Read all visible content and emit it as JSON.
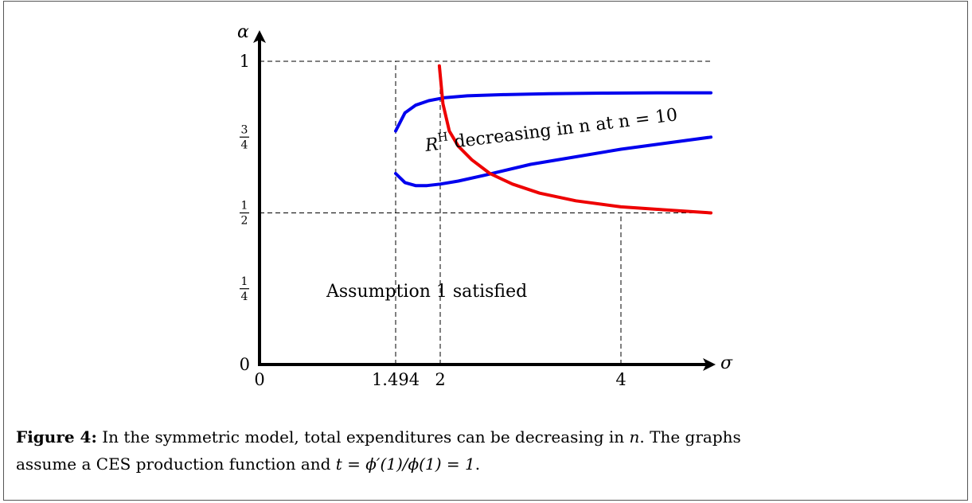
{
  "chart_data": {
    "type": "line",
    "xlabel": "σ",
    "ylabel": "α",
    "xlim": [
      0,
      5
    ],
    "ylim": [
      0,
      1
    ],
    "x_ticks": [
      {
        "value": 0,
        "label": "0"
      },
      {
        "value": 1.494,
        "label": "1.494"
      },
      {
        "value": 2,
        "label": "2"
      },
      {
        "value": 4,
        "label": "4"
      }
    ],
    "y_ticks": [
      {
        "value": 0,
        "label": "0"
      },
      {
        "value": 0.25,
        "label": "1/4",
        "num": "1",
        "den": "4"
      },
      {
        "value": 0.5,
        "label": "1/2",
        "num": "1",
        "den": "2"
      },
      {
        "value": 0.75,
        "label": "3/4",
        "num": "3",
        "den": "4"
      },
      {
        "value": 1,
        "label": "1"
      }
    ],
    "dashed_vlines": [
      {
        "x": 1.494,
        "y_top": 1
      },
      {
        "x": 2,
        "y_top": 0.95
      },
      {
        "x": 4,
        "y_top": 0.5
      }
    ],
    "dashed_hlines": [
      {
        "y": 1,
        "x_to": 5
      },
      {
        "y": 0.5,
        "x_to": 5
      }
    ],
    "series": [
      {
        "color": "#0000ee",
        "x": [
          1.494,
          1.6,
          1.72,
          1.87,
          2.05,
          2.3,
          2.7,
          3.2,
          3.8,
          4.4,
          5.0
        ],
        "y": [
          0.77,
          0.83,
          0.855,
          0.87,
          0.88,
          0.886,
          0.89,
          0.893,
          0.895,
          0.896,
          0.896
        ]
      },
      {
        "color": "#0000ee",
        "x": [
          1.494,
          1.6,
          1.72,
          1.85,
          2.0,
          2.2,
          2.5,
          3.0,
          3.5,
          4.0,
          4.5,
          5.0
        ],
        "y": [
          0.63,
          0.6,
          0.59,
          0.59,
          0.595,
          0.605,
          0.625,
          0.66,
          0.685,
          0.71,
          0.73,
          0.75
        ]
      },
      {
        "color": "#ee0000",
        "x": [
          1.99,
          2.03,
          2.1,
          2.2,
          2.35,
          2.55,
          2.8,
          3.1,
          3.5,
          4.0,
          4.5,
          5.0
        ],
        "y": [
          0.985,
          0.86,
          0.77,
          0.72,
          0.675,
          0.63,
          0.595,
          0.565,
          0.54,
          0.52,
          0.51,
          0.5
        ]
      }
    ],
    "annotations": [
      {
        "text": "R",
        "superscript": "H",
        "rest": " decreasing in n at n = 10",
        "x": 1.9,
        "y": 0.72,
        "rotate": -7
      },
      {
        "text": "Assumption 1 satisfied",
        "x": 2.0,
        "y": 0.235
      }
    ]
  },
  "caption": {
    "label": "Figure 4:",
    "line1": " In the symmetric model, total expenditures can be decreasing in ",
    "var_n": "n",
    "line1_end": ". The graphs",
    "line2": "assume a CES production function and ",
    "formula": "t = ϕ′(1)/ϕ(1) = 1",
    "line2_end": "."
  }
}
